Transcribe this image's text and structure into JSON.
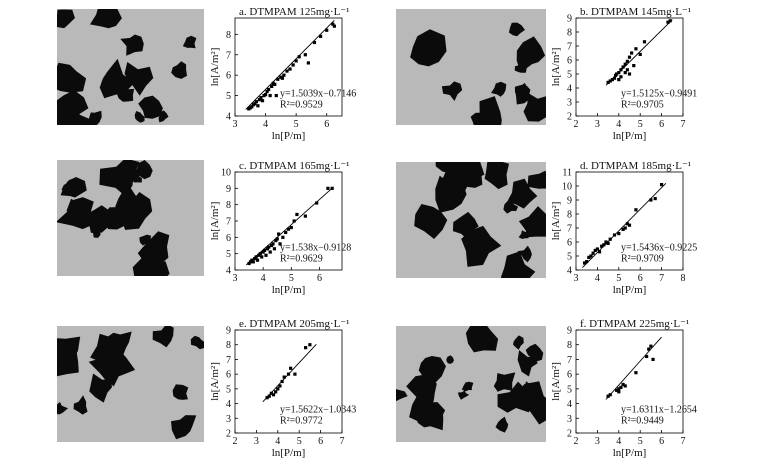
{
  "panels": [
    {
      "title": "a. DTMPAM 125mg·L⁻¹",
      "xlabel": "ln[P/m]",
      "ylabel": "ln[A/m²]",
      "eq": "y=1.5039x−0.7146",
      "r2": "R²=0.9529",
      "xlim": [
        3,
        6.5
      ],
      "ylim": [
        4,
        8.8
      ],
      "xticks": [
        3,
        4,
        5,
        6
      ],
      "yticks": [
        4,
        5,
        6,
        7,
        8
      ],
      "line": {
        "slope": 1.5039,
        "intercept": -0.7146,
        "x": [
          3.35,
          6.25
        ]
      },
      "points": [
        [
          3.45,
          4.35
        ],
        [
          3.5,
          4.4
        ],
        [
          3.55,
          4.45
        ],
        [
          3.6,
          4.55
        ],
        [
          3.65,
          4.6
        ],
        [
          3.7,
          4.7
        ],
        [
          3.75,
          4.5
        ],
        [
          3.8,
          4.8
        ],
        [
          3.85,
          4.9
        ],
        [
          3.9,
          4.75
        ],
        [
          3.95,
          5.0
        ],
        [
          4.0,
          5.05
        ],
        [
          4.05,
          5.2
        ],
        [
          4.1,
          5.3
        ],
        [
          4.15,
          5.0
        ],
        [
          4.2,
          5.45
        ],
        [
          4.25,
          5.6
        ],
        [
          4.3,
          5.55
        ],
        [
          4.35,
          5.0
        ],
        [
          4.4,
          5.8
        ],
        [
          4.5,
          5.9
        ],
        [
          4.55,
          5.85
        ],
        [
          4.6,
          6.0
        ],
        [
          4.7,
          6.2
        ],
        [
          4.8,
          6.3
        ],
        [
          4.9,
          6.5
        ],
        [
          5.0,
          6.7
        ],
        [
          5.1,
          6.9
        ],
        [
          5.3,
          7.0
        ],
        [
          5.4,
          6.6
        ],
        [
          5.6,
          7.6
        ],
        [
          5.8,
          7.9
        ],
        [
          6.0,
          8.2
        ],
        [
          6.2,
          8.5
        ],
        [
          6.25,
          8.4
        ]
      ]
    },
    {
      "title": "b. DTMPAM 145mg·L⁻¹",
      "xlabel": "ln[P/m]",
      "ylabel": "ln[A/m²]",
      "eq": "y=1.5125x−0.9491",
      "r2": "R²=0.9705",
      "xlim": [
        2,
        7
      ],
      "ylim": [
        2,
        9
      ],
      "xticks": [
        2,
        3,
        4,
        5,
        6,
        7
      ],
      "yticks": [
        2,
        3,
        4,
        5,
        6,
        7,
        8,
        9
      ],
      "line": {
        "slope": 1.5125,
        "intercept": -0.9491,
        "x": [
          3.4,
          6.5
        ]
      },
      "points": [
        [
          3.5,
          4.4
        ],
        [
          3.6,
          4.5
        ],
        [
          3.7,
          4.6
        ],
        [
          3.8,
          4.7
        ],
        [
          3.85,
          4.9
        ],
        [
          3.9,
          5.0
        ],
        [
          4.0,
          5.1
        ],
        [
          4.0,
          4.6
        ],
        [
          4.1,
          5.3
        ],
        [
          4.1,
          4.8
        ],
        [
          4.2,
          5.5
        ],
        [
          4.3,
          5.1
        ],
        [
          4.3,
          5.7
        ],
        [
          4.4,
          5.9
        ],
        [
          4.4,
          5.3
        ],
        [
          4.5,
          5.0
        ],
        [
          4.5,
          6.2
        ],
        [
          4.6,
          6.5
        ],
        [
          4.7,
          5.6
        ],
        [
          4.8,
          6.8
        ],
        [
          5.0,
          6.4
        ],
        [
          5.2,
          7.3
        ],
        [
          6.3,
          8.7
        ],
        [
          6.4,
          8.8
        ]
      ]
    },
    {
      "title": "c. DTMPAM 165mg·L⁻¹",
      "xlabel": "ln[P/m]",
      "ylabel": "ln[A/m²]",
      "eq": "y=1.538x−0.9128",
      "r2": "R²=0.9629",
      "xlim": [
        3,
        6.8
      ],
      "ylim": [
        4,
        10
      ],
      "xticks": [
        3,
        4,
        5,
        6
      ],
      "yticks": [
        4,
        5,
        6,
        7,
        8,
        9,
        10
      ],
      "line": {
        "slope": 1.538,
        "intercept": -0.9128,
        "x": [
          3.4,
          6.5
        ]
      },
      "points": [
        [
          3.5,
          4.4
        ],
        [
          3.55,
          4.5
        ],
        [
          3.6,
          4.6
        ],
        [
          3.65,
          4.5
        ],
        [
          3.7,
          4.7
        ],
        [
          3.75,
          4.8
        ],
        [
          3.8,
          4.6
        ],
        [
          3.85,
          4.9
        ],
        [
          3.9,
          5.0
        ],
        [
          3.95,
          4.8
        ],
        [
          4.0,
          5.1
        ],
        [
          4.05,
          5.2
        ],
        [
          4.1,
          4.9
        ],
        [
          4.15,
          5.3
        ],
        [
          4.2,
          5.4
        ],
        [
          4.25,
          5.1
        ],
        [
          4.3,
          5.5
        ],
        [
          4.35,
          5.6
        ],
        [
          4.4,
          5.3
        ],
        [
          4.45,
          5.8
        ],
        [
          4.5,
          5.9
        ],
        [
          4.55,
          6.2
        ],
        [
          4.6,
          5.6
        ],
        [
          4.7,
          6.0
        ],
        [
          4.8,
          6.3
        ],
        [
          4.9,
          6.5
        ],
        [
          5.0,
          6.6
        ],
        [
          5.1,
          7.0
        ],
        [
          5.2,
          7.4
        ],
        [
          5.5,
          7.3
        ],
        [
          5.9,
          8.1
        ],
        [
          6.3,
          9.0
        ],
        [
          6.45,
          9.0
        ]
      ]
    },
    {
      "title": "d. DTMPAM 185mg·L⁻¹",
      "xlabel": "ln[P/m]",
      "ylabel": "ln[A/m²]",
      "eq": "y=1.5436x−0.9225",
      "r2": "R²=0.9709",
      "xlim": [
        3,
        8
      ],
      "ylim": [
        4,
        11
      ],
      "xticks": [
        3,
        4,
        5,
        6,
        7,
        8
      ],
      "yticks": [
        4,
        5,
        6,
        7,
        8,
        9,
        10,
        11
      ],
      "line": {
        "slope": 1.5436,
        "intercept": -0.9225,
        "x": [
          3.3,
          7.2
        ]
      },
      "points": [
        [
          3.4,
          4.5
        ],
        [
          3.5,
          4.6
        ],
        [
          3.6,
          4.9
        ],
        [
          3.7,
          5.0
        ],
        [
          3.8,
          5.2
        ],
        [
          3.9,
          5.4
        ],
        [
          4.0,
          5.5
        ],
        [
          4.1,
          5.3
        ],
        [
          4.2,
          5.7
        ],
        [
          4.3,
          5.8
        ],
        [
          4.4,
          6.0
        ],
        [
          4.5,
          5.9
        ],
        [
          4.6,
          6.2
        ],
        [
          4.8,
          6.5
        ],
        [
          5.0,
          6.6
        ],
        [
          5.2,
          6.9
        ],
        [
          5.3,
          7.0
        ],
        [
          5.4,
          7.3
        ],
        [
          5.5,
          7.2
        ],
        [
          5.8,
          8.3
        ],
        [
          6.5,
          9.0
        ],
        [
          6.7,
          9.1
        ],
        [
          7.0,
          10.1
        ]
      ]
    },
    {
      "title": "e. DTMPAM 205mg·L⁻¹",
      "xlabel": "ln[P/m]",
      "ylabel": "ln[A/m²]",
      "eq": "y=1.5622x−1.0343",
      "r2": "R²=0.9772",
      "xlim": [
        2,
        7
      ],
      "ylim": [
        2,
        9
      ],
      "xticks": [
        2,
        3,
        4,
        5,
        6,
        7
      ],
      "yticks": [
        2,
        3,
        4,
        5,
        6,
        7,
        8,
        9
      ],
      "line": {
        "slope": 1.5622,
        "intercept": -1.0343,
        "x": [
          3.3,
          5.8
        ]
      },
      "points": [
        [
          3.5,
          4.4
        ],
        [
          3.6,
          4.5
        ],
        [
          3.7,
          4.7
        ],
        [
          3.8,
          4.6
        ],
        [
          3.9,
          4.8
        ],
        [
          4.0,
          5.0
        ],
        [
          4.1,
          5.2
        ],
        [
          4.2,
          5.5
        ],
        [
          4.3,
          5.8
        ],
        [
          4.5,
          6.0
        ],
        [
          4.6,
          6.4
        ],
        [
          4.8,
          6.0
        ],
        [
          5.3,
          7.8
        ],
        [
          5.5,
          8.0
        ]
      ]
    },
    {
      "title": "f. DTMPAM 225mg·L⁻¹",
      "xlabel": "ln[P/m]",
      "ylabel": "ln[A/m²]",
      "eq": "y=1.6311x−1.2654",
      "r2": "R²=0.9449",
      "xlim": [
        2,
        7
      ],
      "ylim": [
        2,
        9
      ],
      "xticks": [
        2,
        3,
        4,
        5,
        6,
        7
      ],
      "yticks": [
        2,
        3,
        4,
        5,
        6,
        7,
        8,
        9
      ],
      "line": {
        "slope": 1.6311,
        "intercept": -1.2654,
        "x": [
          3.4,
          6.0
        ]
      },
      "points": [
        [
          3.5,
          4.5
        ],
        [
          3.6,
          4.6
        ],
        [
          3.9,
          4.9
        ],
        [
          4.0,
          5.0
        ],
        [
          4.0,
          4.8
        ],
        [
          4.1,
          5.1
        ],
        [
          4.2,
          5.3
        ],
        [
          4.3,
          5.2
        ],
        [
          4.8,
          6.1
        ],
        [
          5.3,
          7.2
        ],
        [
          5.4,
          7.7
        ],
        [
          5.5,
          7.9
        ],
        [
          5.6,
          7.0
        ]
      ]
    }
  ]
}
